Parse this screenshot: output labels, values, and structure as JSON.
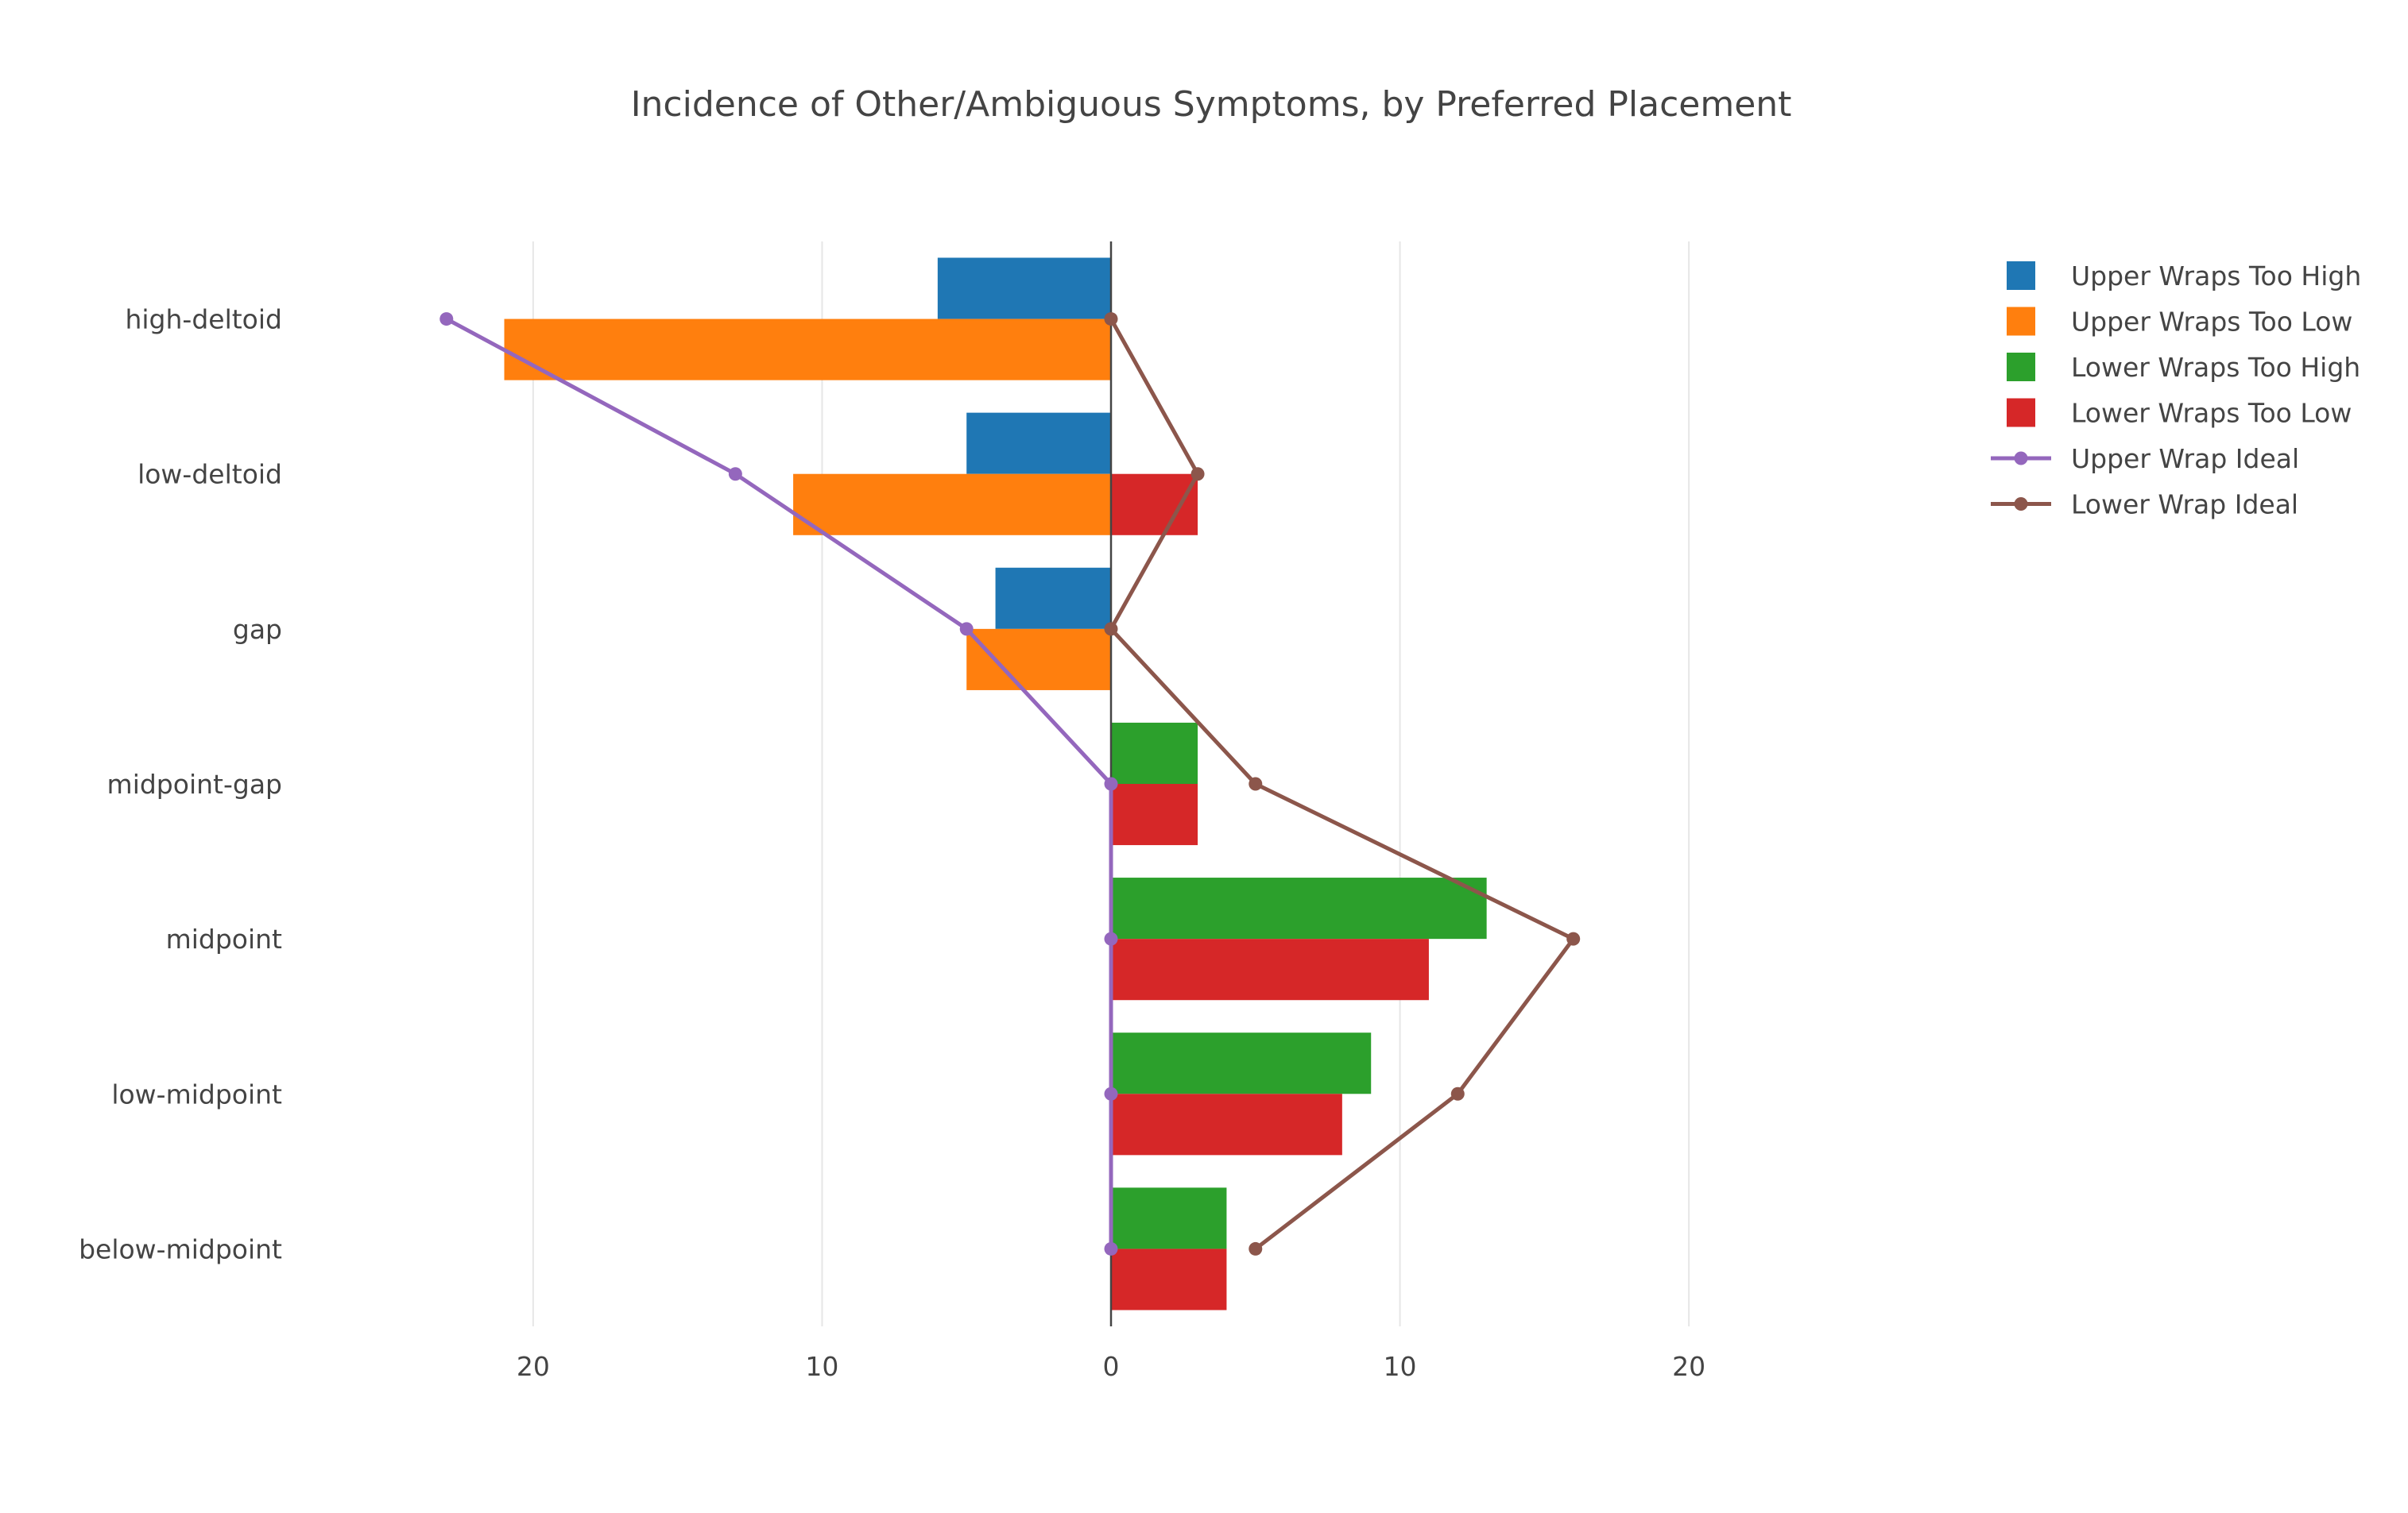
{
  "chart_data": {
    "type": "bar",
    "orientation": "horizontal",
    "title": "Incidence of Other/Ambiguous Symptoms, by Preferred Placement",
    "categories": [
      "high-deltoid",
      "low-deltoid",
      "gap",
      "midpoint-gap",
      "midpoint",
      "low-midpoint",
      "below-midpoint"
    ],
    "xlim": [
      -28,
      28
    ],
    "x_ticks": [
      {
        "value": -20,
        "label": "20"
      },
      {
        "value": -10,
        "label": "10"
      },
      {
        "value": 0,
        "label": "0"
      },
      {
        "value": 10,
        "label": "10"
      },
      {
        "value": 20,
        "label": "20"
      }
    ],
    "grid": true,
    "legend_position": "top-right",
    "bar_series": [
      {
        "name": "Upper Wraps Too High",
        "color": "#1f77b4",
        "slot": "upper",
        "values": [
          -6,
          -5,
          -4,
          0,
          0,
          0,
          0
        ]
      },
      {
        "name": "Upper Wraps Too Low",
        "color": "#ff7f0e",
        "slot": "lower",
        "values": [
          -21,
          -11,
          -5,
          0,
          0,
          0,
          0
        ]
      },
      {
        "name": "Lower Wraps Too High",
        "color": "#2ca02c",
        "slot": "upper",
        "values": [
          0,
          0,
          0,
          3,
          13,
          9,
          4
        ]
      },
      {
        "name": "Lower Wraps Too Low",
        "color": "#d62728",
        "slot": "lower",
        "values": [
          0,
          3,
          0,
          3,
          11,
          8,
          4
        ]
      }
    ],
    "line_series": [
      {
        "name": "Upper Wrap Ideal",
        "color": "#9467bd",
        "values": [
          -23,
          -13,
          -5,
          0,
          0,
          0,
          0
        ]
      },
      {
        "name": "Lower Wrap Ideal",
        "color": "#8c564b",
        "values": [
          0,
          3,
          0,
          5,
          16,
          12,
          5
        ]
      }
    ]
  }
}
